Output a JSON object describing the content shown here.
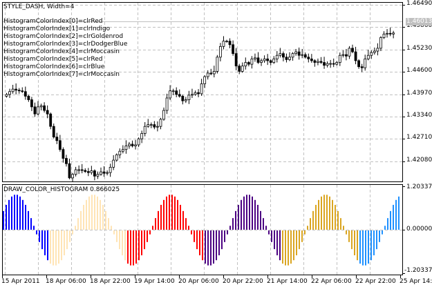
{
  "main_panel": {
    "title": "STYLE_DASH,  Width=4",
    "legend_lines": [
      "HistogramColorIndex[0]=clrRed",
      "HistogramColorIndex[1]=clrIndigo",
      "HistogramColorIndex[2]=clrGoldenrod",
      "HistogramColorIndex[3]=clrDodgerBlue",
      "HistogramColorIndex[4]=clrMoccasin",
      "HistogramColorIndex[5]=clrRed",
      "HistogramColorIndex[6]=clrBlue",
      "HistogramColorIndex[7]=clrMoccasin"
    ],
    "price_ticks": [
      "1.46490",
      "1.45860",
      "1.45230",
      "1.44600",
      "1.43970",
      "1.43340",
      "1.42710",
      "1.42080"
    ],
    "current_price": "1.46013",
    "current_price_bg": "#c0c0c0"
  },
  "indicator_panel": {
    "title": "DRAW_COLOR_HISTOGRAM 0.866025",
    "ticks": [
      "1.203372",
      "0.000000",
      "-1.203372"
    ]
  },
  "time_axis": {
    "labels": [
      "15 Apr 2011",
      "18 Apr 06:00",
      "18 Apr 22:00",
      "19 Apr 14:00",
      "20 Apr 06:00",
      "20 Apr 22:00",
      "21 Apr 14:00",
      "22 Apr 06:00",
      "22 Apr 22:00",
      "25 Apr 14:00"
    ]
  },
  "chart_data": [
    {
      "type": "candlestick",
      "title": "STYLE_DASH,  Width=4",
      "xlabel": "",
      "ylabel": "Price",
      "ylim": [
        1.4165,
        1.467
      ],
      "x_tick_labels": [
        "15 Apr 2011",
        "18 Apr 06:00",
        "18 Apr 22:00",
        "19 Apr 14:00",
        "20 Apr 06:00",
        "20 Apr 22:00",
        "21 Apr 14:00",
        "22 Apr 06:00",
        "22 Apr 22:00",
        "25 Apr 14:00"
      ],
      "y_tick_labels": [
        "1.46490",
        "1.45860",
        "1.45230",
        "1.44600",
        "1.43970",
        "1.43340",
        "1.42710",
        "1.42080"
      ],
      "last_price": 1.46013,
      "close_approx": [
        1.441,
        1.4418,
        1.4425,
        1.4422,
        1.442,
        1.4418,
        1.4405,
        1.4395,
        1.4375,
        1.4355,
        1.4375,
        1.4378,
        1.4365,
        1.4355,
        1.432,
        1.429,
        1.428,
        1.4255,
        1.423,
        1.4215,
        1.4175,
        1.4185,
        1.4198,
        1.4198,
        1.4196,
        1.4193,
        1.419,
        1.4195,
        1.418,
        1.4185,
        1.4192,
        1.4188,
        1.419,
        1.4205,
        1.4225,
        1.424,
        1.425,
        1.4255,
        1.4265,
        1.427,
        1.4265,
        1.4268,
        1.4285,
        1.43,
        1.432,
        1.4325,
        1.4325,
        1.4318,
        1.432,
        1.434,
        1.4365,
        1.44,
        1.442,
        1.442,
        1.441,
        1.4405,
        1.4392,
        1.4395,
        1.4408,
        1.441,
        1.4415,
        1.4412,
        1.444,
        1.446,
        1.447,
        1.4468,
        1.4475,
        1.4515,
        1.4545,
        1.456,
        1.456,
        1.455,
        1.4525,
        1.449,
        1.4475,
        1.449,
        1.45,
        1.4495,
        1.451,
        1.4513,
        1.45,
        1.4505,
        1.451,
        1.4505,
        1.45,
        1.451,
        1.452,
        1.4525,
        1.4515,
        1.4508,
        1.4515,
        1.4525,
        1.453,
        1.452,
        1.4522,
        1.4515,
        1.451,
        1.4505,
        1.45,
        1.4503,
        1.45,
        1.4492,
        1.4497,
        1.4497,
        1.4495,
        1.45,
        1.452,
        1.4522,
        1.4518,
        1.454,
        1.453,
        1.4505,
        1.4488,
        1.4485,
        1.451,
        1.452,
        1.4528,
        1.4532,
        1.454,
        1.457,
        1.458,
        1.4582,
        1.458,
        1.4583
      ]
    },
    {
      "type": "bar",
      "title": "DRAW_COLOR_HISTOGRAM 0.866025",
      "ylim": [
        -1.203372,
        1.203372
      ],
      "y_tick_labels": [
        "1.203372",
        "0.000000",
        "-1.203372"
      ],
      "current_value": 0.866025,
      "description": "sin wave, period 28 bars, colored per half-wave",
      "segments": [
        {
          "color_name": "clrBlue",
          "color": "#0000ff",
          "sign": "neg-tail+neg",
          "bars": 17
        },
        {
          "color_name": "clrMoccasin",
          "color": "#ffe4b5",
          "sign": "pos",
          "bars": 14
        },
        {
          "color_name": "clrMoccasin",
          "color": "#ffe4b5",
          "sign": "neg",
          "bars": 14
        },
        {
          "color_name": "clrRed",
          "color": "#ff0000",
          "sign": "pos",
          "bars": 14
        },
        {
          "color_name": "clrRed",
          "color": "#ff0000",
          "sign": "neg",
          "bars": 14
        },
        {
          "color_name": "clrIndigo",
          "color": "#4b0082",
          "sign": "pos",
          "bars": 14
        },
        {
          "color_name": "clrIndigo",
          "color": "#4b0082",
          "sign": "neg",
          "bars": 14
        },
        {
          "color_name": "clrGoldenrod",
          "color": "#daa520",
          "sign": "pos",
          "bars": 14
        },
        {
          "color_name": "clrGoldenrod",
          "color": "#daa520",
          "sign": "neg",
          "bars": 14
        },
        {
          "color_name": "clrDodgerBlue",
          "color": "#1e90ff",
          "sign": "pos",
          "bars": 5
        }
      ]
    }
  ],
  "colors": {
    "grid": "#c0c0c0",
    "frame": "#000000",
    "candle_up_fill": "#ffffff",
    "candle_down_fill": "#000000"
  }
}
